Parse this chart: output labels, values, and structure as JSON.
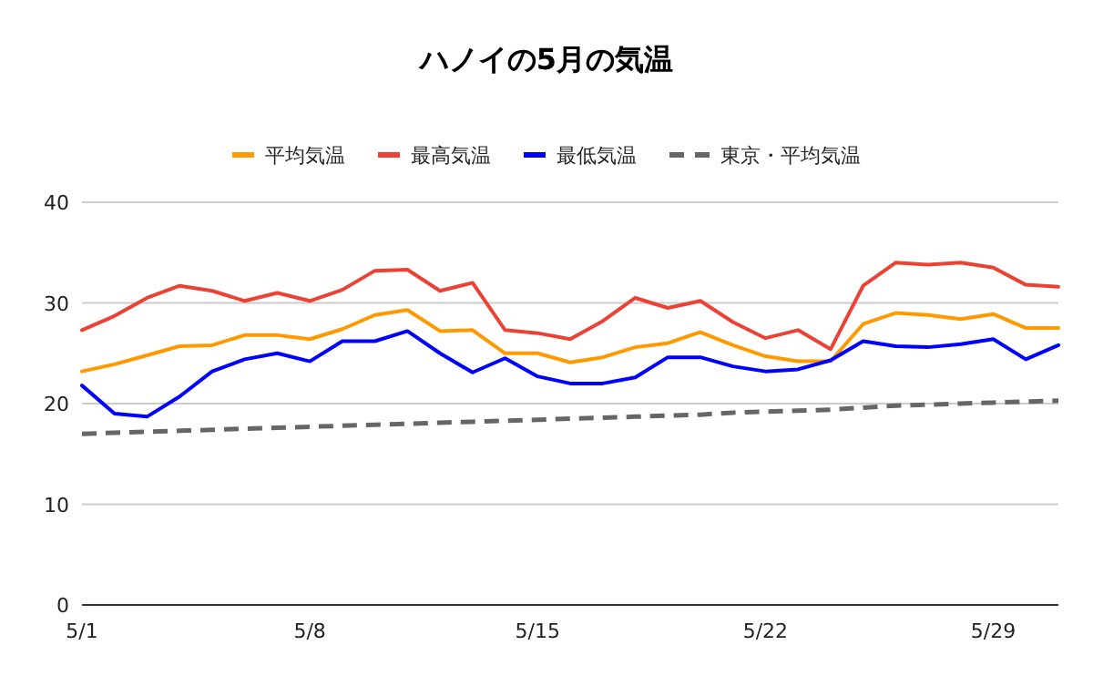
{
  "chart_data": {
    "type": "line",
    "title": "ハノイの5月の気温",
    "categories": [
      "5/1",
      null,
      null,
      null,
      null,
      null,
      null,
      "5/8",
      null,
      null,
      null,
      null,
      null,
      null,
      "5/15",
      null,
      null,
      null,
      null,
      null,
      null,
      "5/22",
      null,
      null,
      null,
      null,
      null,
      null,
      "5/29",
      null,
      null
    ],
    "series": [
      {
        "name": "平均気温",
        "color": "#ff9900",
        "values": [
          23.2,
          23.9,
          24.8,
          25.7,
          25.8,
          26.8,
          26.8,
          26.4,
          27.4,
          28.8,
          29.3,
          27.2,
          27.3,
          25.0,
          25.0,
          24.1,
          24.6,
          25.6,
          26.0,
          27.1,
          25.8,
          24.7,
          24.2,
          24.2,
          27.9,
          29.0,
          28.8,
          28.4,
          28.9,
          27.5,
          27.5
        ]
      },
      {
        "name": "最高気温",
        "color": "#ea4335",
        "values": [
          27.3,
          28.7,
          30.5,
          31.7,
          31.2,
          30.2,
          31.0,
          30.2,
          31.3,
          33.2,
          33.3,
          31.2,
          32.0,
          27.3,
          27.0,
          26.4,
          28.2,
          30.5,
          29.5,
          30.2,
          28.1,
          26.5,
          27.3,
          25.4,
          31.7,
          34.0,
          33.8,
          34.0,
          33.5,
          31.8,
          31.6
        ]
      },
      {
        "name": "最低気温",
        "color": "#0000ff",
        "values": [
          21.8,
          19.0,
          18.7,
          20.7,
          23.2,
          24.4,
          25.0,
          24.2,
          26.2,
          26.2,
          27.2,
          25.0,
          23.1,
          24.5,
          22.7,
          22.0,
          22.0,
          22.6,
          24.6,
          24.6,
          23.7,
          23.2,
          23.4,
          24.3,
          26.2,
          25.7,
          25.6,
          25.9,
          26.4,
          24.4,
          25.8
        ]
      },
      {
        "name": "東京・平均気温",
        "color": "#666666",
        "line_style": "dashed",
        "values": [
          17.0,
          17.1,
          17.2,
          17.3,
          17.4,
          17.5,
          17.6,
          17.7,
          17.8,
          17.9,
          18.0,
          18.1,
          18.2,
          18.3,
          18.4,
          18.5,
          18.6,
          18.7,
          18.8,
          18.9,
          19.1,
          19.2,
          19.3,
          19.4,
          19.6,
          19.8,
          19.9,
          20.0,
          20.1,
          20.2,
          20.3
        ]
      }
    ],
    "ylim": [
      0,
      40
    ],
    "yticks": [
      0,
      10,
      20,
      30,
      40
    ],
    "grid": "y",
    "legend": "top",
    "marker": "none",
    "line_style": "solid"
  }
}
